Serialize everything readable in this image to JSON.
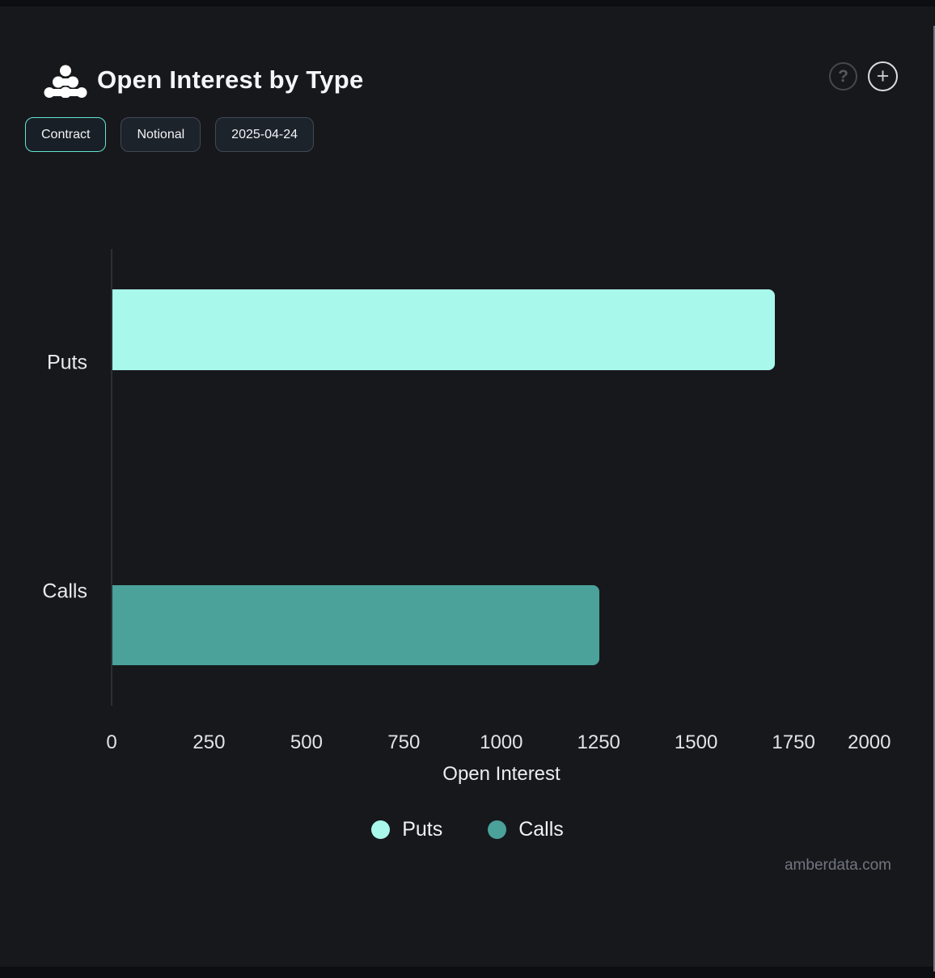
{
  "header": {
    "title": "Open Interest by Type",
    "help_glyph": "?",
    "add_glyph": "+"
  },
  "toolbar": {
    "buttons": [
      {
        "label": "Contract",
        "active": true
      },
      {
        "label": "Notional",
        "active": false
      },
      {
        "label": "2025-04-24",
        "active": false
      }
    ]
  },
  "chart_data": {
    "type": "bar",
    "orientation": "horizontal",
    "categories": [
      "Puts",
      "Calls"
    ],
    "values": [
      1700,
      1250
    ],
    "colors": [
      "#a8f8eb",
      "#4aa29a"
    ],
    "title": "Open Interest by Type",
    "xlabel": "Open Interest",
    "ylabel": "",
    "xlim": [
      0,
      2000
    ],
    "xticks": [
      0,
      250,
      500,
      750,
      1000,
      1250,
      1500,
      1750,
      2000
    ],
    "grid": false,
    "legend": [
      {
        "label": "Puts",
        "color": "#a8f8eb"
      },
      {
        "label": "Calls",
        "color": "#4aa29a"
      }
    ],
    "legend_position": "bottom"
  },
  "footer": {
    "watermark": "amberdata.com"
  }
}
